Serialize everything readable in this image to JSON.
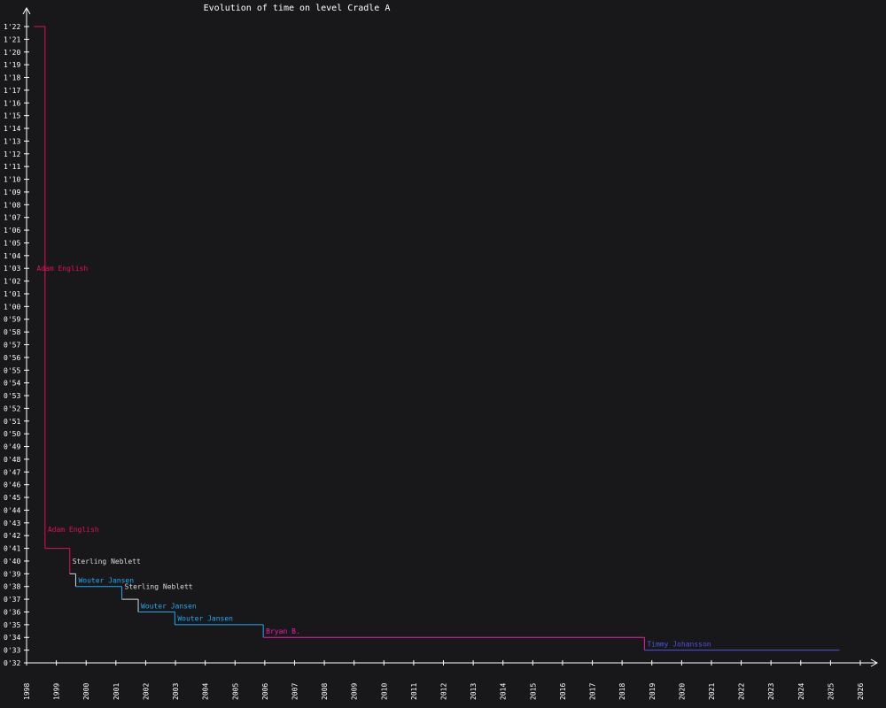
{
  "chart_data": {
    "type": "line",
    "title": "Evolution of time on level Cradle A",
    "xlabel": "",
    "ylabel": "",
    "x_ticks": [
      "1998",
      "1999",
      "2000",
      "2001",
      "2002",
      "2003",
      "2004",
      "2005",
      "2006",
      "2007",
      "2008",
      "2009",
      "2010",
      "2011",
      "2012",
      "2013",
      "2014",
      "2015",
      "2016",
      "2017",
      "2018",
      "2019",
      "2020",
      "2021",
      "2022",
      "2023",
      "2024",
      "2025",
      "2026"
    ],
    "y_ticks": [
      "1'22",
      "1'21",
      "1'20",
      "1'19",
      "1'18",
      "1'17",
      "1'16",
      "1'15",
      "1'14",
      "1'13",
      "1'12",
      "1'11",
      "1'10",
      "1'09",
      "1'08",
      "1'07",
      "1'06",
      "1'05",
      "1'04",
      "1'03",
      "1'02",
      "1'01",
      "1'00",
      "0'59",
      "0'58",
      "0'57",
      "0'56",
      "0'55",
      "0'54",
      "0'53",
      "0'52",
      "0'51",
      "0'50",
      "0'49",
      "0'48",
      "0'47",
      "0'46",
      "0'45",
      "0'44",
      "0'43",
      "0'42",
      "0'41",
      "0'40",
      "0'39",
      "0'38",
      "0'37",
      "0'36",
      "0'35",
      "0'34",
      "0'33",
      "0'32"
    ],
    "xlim": [
      "1998",
      "2026"
    ],
    "ylim": [
      32,
      82
    ],
    "records": [
      {
        "name": "Adam English",
        "start": 1998.25,
        "end": 1998.62,
        "time": 82,
        "color": "#e0105a",
        "label_time": 63
      },
      {
        "name": "Adam English",
        "start": 1998.62,
        "end": 1999.45,
        "time": 41,
        "color": "#e0105a",
        "label_time": 42.5
      },
      {
        "name": "Sterling Neblett",
        "start": 1999.45,
        "end": 1999.65,
        "time": 39,
        "color": "#d8d8d8",
        "label_time": 40
      },
      {
        "name": "Wouter Jansen",
        "start": 1999.65,
        "end": 2001.2,
        "time": 38,
        "color": "#1eaaf0",
        "label_time": 38.5
      },
      {
        "name": "Sterling Neblett",
        "start": 2001.2,
        "end": 2001.75,
        "time": 37,
        "color": "#d8d8d8",
        "label_time": 38
      },
      {
        "name": "Wouter Jansen",
        "start": 2001.75,
        "end": 2002.98,
        "time": 36,
        "color": "#1eaaf0",
        "label_time": 36.5
      },
      {
        "name": "Wouter Jansen",
        "start": 2002.98,
        "end": 2005.95,
        "time": 35,
        "color": "#1eaaf0",
        "label_time": 35.5
      },
      {
        "name": "Bryan B.",
        "start": 2005.95,
        "end": 2018.75,
        "time": 34,
        "color": "#ee1eaa",
        "label_time": 34.5
      },
      {
        "name": "Timmy Johansson",
        "start": 2018.75,
        "end": 2025.3,
        "time": 33,
        "color": "#5050e6",
        "label_time": 33.5
      }
    ]
  }
}
